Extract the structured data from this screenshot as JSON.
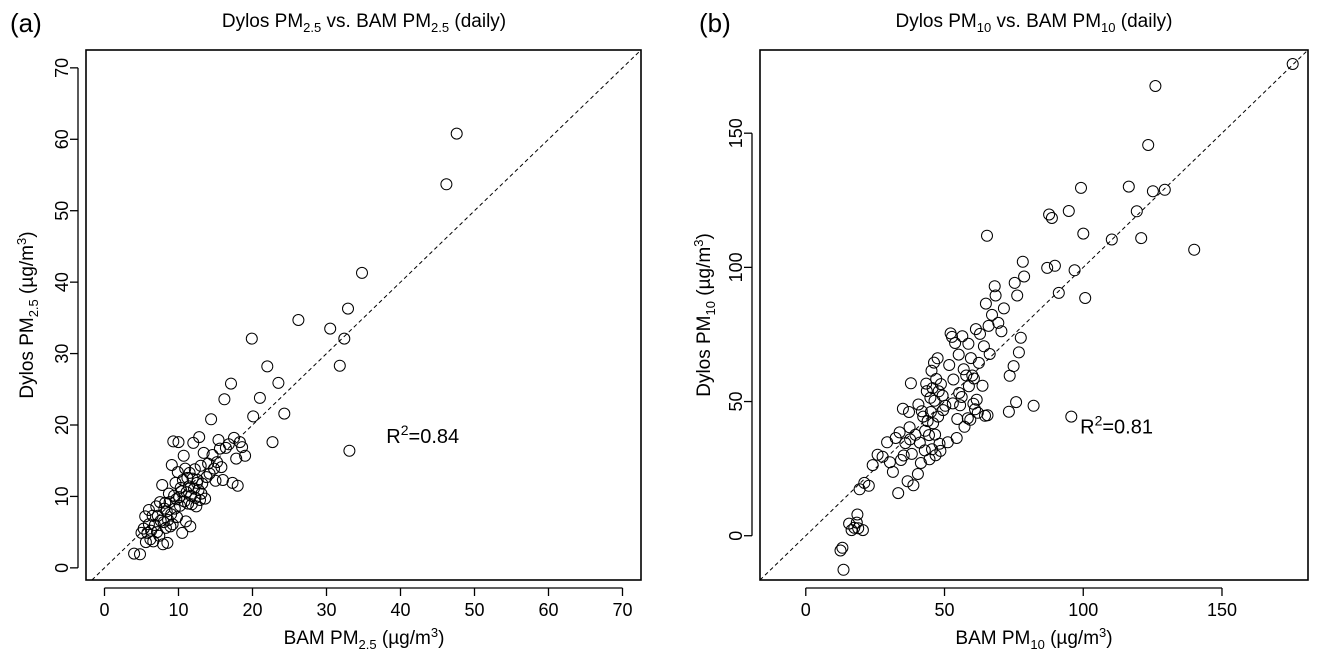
{
  "chart_data": [
    {
      "type": "scatter",
      "panel_label": "(a)",
      "title": {
        "t1": "Dylos PM",
        "s1": "2.5",
        "t2": " vs. BAM PM",
        "s2": "2.5",
        "t3": " (daily)"
      },
      "xlabel": {
        "t1": "BAM PM",
        "s1": "2.5",
        "t2": " (µg/m",
        "sup": "3",
        "t3": ")"
      },
      "ylabel": {
        "t1": "Dylos PM",
        "s1": "2.5",
        "t2": " (µg/m",
        "sup": "3",
        "t3": ")"
      },
      "annotation": {
        "pre": "R",
        "sup": "2",
        "post": "=0.84",
        "x": 43,
        "y": 17.5
      },
      "xlim": [
        -2.5,
        72.5
      ],
      "ylim": [
        -1.7,
        72.5
      ],
      "xticks": [
        0,
        10,
        20,
        30,
        40,
        50,
        60,
        70
      ],
      "yticks": [
        0,
        10,
        20,
        30,
        40,
        50,
        60,
        70
      ],
      "reference_line": "y = x (dashed)",
      "points": [
        [
          4,
          2
        ],
        [
          4.8,
          1.9
        ],
        [
          5,
          4.9
        ],
        [
          5.3,
          5.5
        ],
        [
          5.5,
          7.2
        ],
        [
          5.6,
          3.6
        ],
        [
          5.8,
          4.9
        ],
        [
          6,
          6.1
        ],
        [
          6,
          8.1
        ],
        [
          6.2,
          4
        ],
        [
          6.3,
          5.2
        ],
        [
          6.5,
          7.3
        ],
        [
          6.6,
          3.7
        ],
        [
          6.8,
          6
        ],
        [
          7,
          8.6
        ],
        [
          7.1,
          5
        ],
        [
          7.2,
          7.3
        ],
        [
          7.4,
          4.5
        ],
        [
          7.5,
          9.2
        ],
        [
          7.6,
          6.6
        ],
        [
          7.8,
          11.6
        ],
        [
          7.9,
          3.3
        ],
        [
          8,
          6.4
        ],
        [
          8.1,
          8.3
        ],
        [
          8.2,
          9.1
        ],
        [
          8.3,
          5.6
        ],
        [
          8.4,
          7.9
        ],
        [
          8.5,
          3.5
        ],
        [
          8.6,
          6.7
        ],
        [
          8.7,
          10.4
        ],
        [
          8.8,
          9.2
        ],
        [
          8.9,
          5.8
        ],
        [
          9,
          7.5
        ],
        [
          9.1,
          14.4
        ],
        [
          9.2,
          6.1
        ],
        [
          9.3,
          17.7
        ],
        [
          9.4,
          10.1
        ],
        [
          9.5,
          8.3
        ],
        [
          9.6,
          11.9
        ],
        [
          9.7,
          9.6
        ],
        [
          9.8,
          7.1
        ],
        [
          9.9,
          13.4
        ],
        [
          10,
          17.6
        ],
        [
          10.1,
          9.9
        ],
        [
          10.2,
          8.7
        ],
        [
          10.3,
          11.2
        ],
        [
          10.4,
          10.7
        ],
        [
          10.5,
          4.9
        ],
        [
          10.6,
          12.3
        ],
        [
          10.7,
          15.7
        ],
        [
          10.8,
          9.3
        ],
        [
          10.9,
          13.9
        ],
        [
          11,
          6.5
        ],
        [
          11.1,
          10.6
        ],
        [
          11.2,
          12.6
        ],
        [
          11.3,
          9
        ],
        [
          11.4,
          11.4
        ],
        [
          11.5,
          13.3
        ],
        [
          11.6,
          5.8
        ],
        [
          11.7,
          10.1
        ],
        [
          11.8,
          8.9
        ],
        [
          11.9,
          12.5
        ],
        [
          12,
          17.5
        ],
        [
          12.1,
          11.1
        ],
        [
          12.2,
          13.8
        ],
        [
          12.3,
          9.8
        ],
        [
          12.4,
          8.6
        ],
        [
          12.5,
          11.9
        ],
        [
          12.6,
          12.3
        ],
        [
          12.7,
          10.9
        ],
        [
          12.8,
          18.3
        ],
        [
          12.9,
          9.5
        ],
        [
          13,
          14.3
        ],
        [
          13.1,
          10.4
        ],
        [
          13.2,
          11.8
        ],
        [
          13.4,
          16.1
        ],
        [
          13.6,
          9.7
        ],
        [
          13.8,
          12.7
        ],
        [
          14,
          14.6
        ],
        [
          14.2,
          13.2
        ],
        [
          14.4,
          20.8
        ],
        [
          14.6,
          15.8
        ],
        [
          14.8,
          13.9
        ],
        [
          15,
          12.2
        ],
        [
          15.2,
          14.8
        ],
        [
          15.4,
          17.9
        ],
        [
          15.6,
          16.7
        ],
        [
          15.8,
          14.1
        ],
        [
          16,
          12.3
        ],
        [
          16.2,
          23.6
        ],
        [
          16.4,
          16.8
        ],
        [
          16.8,
          17.3
        ],
        [
          17.1,
          25.8
        ],
        [
          17.3,
          11.9
        ],
        [
          17.5,
          18.2
        ],
        [
          17.8,
          15.3
        ],
        [
          18,
          11.5
        ],
        [
          18.3,
          17.6
        ],
        [
          18.6,
          16.9
        ],
        [
          19,
          15.7
        ],
        [
          19.9,
          32.1
        ],
        [
          20.1,
          21.2
        ],
        [
          21,
          23.8
        ],
        [
          22,
          28.2
        ],
        [
          22.7,
          17.6
        ],
        [
          23.5,
          25.9
        ],
        [
          24.3,
          21.6
        ],
        [
          26.2,
          34.7
        ],
        [
          30.5,
          33.5
        ],
        [
          31.8,
          28.3
        ],
        [
          32.4,
          32.1
        ],
        [
          32.9,
          36.3
        ],
        [
          33.1,
          16.4
        ],
        [
          34.8,
          41.3
        ],
        [
          46.2,
          53.7
        ],
        [
          47.6,
          60.8
        ]
      ]
    },
    {
      "type": "scatter",
      "panel_label": "(b)",
      "title": {
        "t1": "Dylos PM",
        "s1": "10",
        "t2": " vs. BAM PM",
        "s2": "10",
        "t3": " (daily)"
      },
      "xlabel": {
        "t1": "BAM PM",
        "s1": "10",
        "t2": " (µg/m",
        "sup": "3",
        "t3": ")"
      },
      "ylabel": {
        "t1": "Dylos PM",
        "s1": "10",
        "t2": " (µg/m",
        "sup": "3",
        "t3": ")"
      },
      "annotation": {
        "pre": "R",
        "sup": "2",
        "post": "=0.81",
        "x": 112,
        "y": 38
      },
      "xlim": [
        -16.5,
        181
      ],
      "ylim": [
        -16.5,
        181
      ],
      "xticks": [
        0,
        50,
        100,
        150
      ],
      "yticks": [
        0,
        50,
        100,
        150
      ],
      "reference_line": "y = x (dashed)",
      "points": [
        [
          12.5,
          -5.5
        ],
        [
          13.2,
          -4.5
        ],
        [
          13.6,
          -12.7
        ],
        [
          15.6,
          4.5
        ],
        [
          16.5,
          2.1
        ],
        [
          17.5,
          3
        ],
        [
          18.4,
          4.9
        ],
        [
          18.6,
          7.9
        ],
        [
          18.9,
          2.8
        ],
        [
          19.4,
          17.3
        ],
        [
          20.6,
          2.1
        ],
        [
          21.1,
          19.7
        ],
        [
          22.7,
          18.6
        ],
        [
          24.1,
          26.3
        ],
        [
          25.9,
          30.2
        ],
        [
          27.7,
          29.4
        ],
        [
          29.3,
          34.8
        ],
        [
          30.3,
          27.4
        ],
        [
          31.4,
          23.8
        ],
        [
          32.4,
          36.4
        ],
        [
          33.3,
          15.9
        ],
        [
          33.8,
          38.5
        ],
        [
          34.3,
          28.2
        ],
        [
          35,
          47.3
        ],
        [
          35.3,
          29.9
        ],
        [
          35.9,
          34.5
        ],
        [
          36.7,
          20.3
        ],
        [
          37.2,
          46.1
        ],
        [
          37.4,
          40.4
        ],
        [
          37.6,
          35.9
        ],
        [
          37.9,
          56.8
        ],
        [
          38.2,
          30.5
        ],
        [
          38.8,
          18.8
        ],
        [
          39.5,
          37.6
        ],
        [
          40.4,
          23
        ],
        [
          40.6,
          48.9
        ],
        [
          41.1,
          34.7
        ],
        [
          41.5,
          27.1
        ],
        [
          41.8,
          46.4
        ],
        [
          42.3,
          44.4
        ],
        [
          42.9,
          31.8
        ],
        [
          43,
          39.1
        ],
        [
          43.4,
          56.7
        ],
        [
          43.6,
          53.9
        ],
        [
          43.9,
          42.7
        ],
        [
          44.4,
          37.5
        ],
        [
          44.6,
          28.5
        ],
        [
          44.9,
          51.4
        ],
        [
          45.1,
          46.1
        ],
        [
          45.3,
          61.5
        ],
        [
          45.5,
          32.2
        ],
        [
          45.7,
          55
        ],
        [
          45.9,
          41.9
        ],
        [
          46.2,
          64.5
        ],
        [
          46.4,
          50.3
        ],
        [
          46.6,
          37.7
        ],
        [
          46.8,
          30
        ],
        [
          47,
          58.4
        ],
        [
          47.5,
          66.1
        ],
        [
          47.7,
          44.4
        ],
        [
          47.9,
          53.8
        ],
        [
          48.2,
          34.3
        ],
        [
          48.5,
          31.6
        ],
        [
          48.7,
          56.5
        ],
        [
          49.3,
          52.2
        ],
        [
          49.5,
          46.8
        ],
        [
          50.3,
          48.4
        ],
        [
          51.2,
          34.8
        ],
        [
          51.7,
          63.6
        ],
        [
          52.2,
          75.4
        ],
        [
          52.7,
          74.1
        ],
        [
          53,
          49.3
        ],
        [
          53.2,
          58.2
        ],
        [
          53.8,
          71.8
        ],
        [
          54.4,
          36.4
        ],
        [
          54.6,
          43.5
        ],
        [
          55.1,
          67.5
        ],
        [
          55.3,
          53.2
        ],
        [
          55.6,
          48.6
        ],
        [
          56.2,
          51.7
        ],
        [
          56.4,
          74.3
        ],
        [
          56.9,
          62
        ],
        [
          57.2,
          40.6
        ],
        [
          57.8,
          59.7
        ],
        [
          58.4,
          43.8
        ],
        [
          58.6,
          71.5
        ],
        [
          58.8,
          55.7
        ],
        [
          59.3,
          43.2
        ],
        [
          59.5,
          66.2
        ],
        [
          60,
          59.7
        ],
        [
          60.4,
          49.2
        ],
        [
          60.6,
          58.6
        ],
        [
          61,
          47.1
        ],
        [
          61.3,
          77
        ],
        [
          61.6,
          50.7
        ],
        [
          62,
          45.8
        ],
        [
          62.4,
          64.4
        ],
        [
          62.8,
          75.2
        ],
        [
          63.7,
          55.9
        ],
        [
          64.2,
          70.6
        ],
        [
          64.6,
          44.7
        ],
        [
          64.9,
          86.5
        ],
        [
          65.3,
          111.8
        ],
        [
          65.5,
          44.9
        ],
        [
          65.9,
          78.2
        ],
        [
          66.3,
          67.7
        ],
        [
          67.1,
          82.3
        ],
        [
          68.1,
          93
        ],
        [
          68.4,
          89.5
        ],
        [
          69.4,
          79.3
        ],
        [
          70.5,
          76.2
        ],
        [
          71.4,
          84.7
        ],
        [
          73.2,
          46.2
        ],
        [
          73.5,
          59.6
        ],
        [
          74.9,
          63.2
        ],
        [
          75.3,
          94.2
        ],
        [
          75.8,
          49.8
        ],
        [
          76.2,
          89.5
        ],
        [
          76.8,
          68.3
        ],
        [
          77.5,
          73.8
        ],
        [
          78.2,
          102.1
        ],
        [
          78.7,
          96.6
        ],
        [
          82.1,
          48.4
        ],
        [
          87,
          99.8
        ],
        [
          87.7,
          119.7
        ],
        [
          88.7,
          118.4
        ],
        [
          89.8,
          100.6
        ],
        [
          91.2,
          90.5
        ],
        [
          94.8,
          121
        ],
        [
          95.7,
          44.4
        ],
        [
          96.9,
          98.9
        ],
        [
          99.2,
          129.6
        ],
        [
          100,
          112.6
        ],
        [
          100.7,
          88.6
        ],
        [
          110.3,
          110.4
        ],
        [
          116.4,
          130.1
        ],
        [
          119.3,
          120.9
        ],
        [
          120.9,
          110.9
        ],
        [
          123.4,
          145.6
        ],
        [
          125.1,
          128.4
        ],
        [
          126,
          167.6
        ],
        [
          129.4,
          128.9
        ],
        [
          140,
          106.6
        ],
        [
          175.5,
          175.8
        ]
      ]
    }
  ]
}
